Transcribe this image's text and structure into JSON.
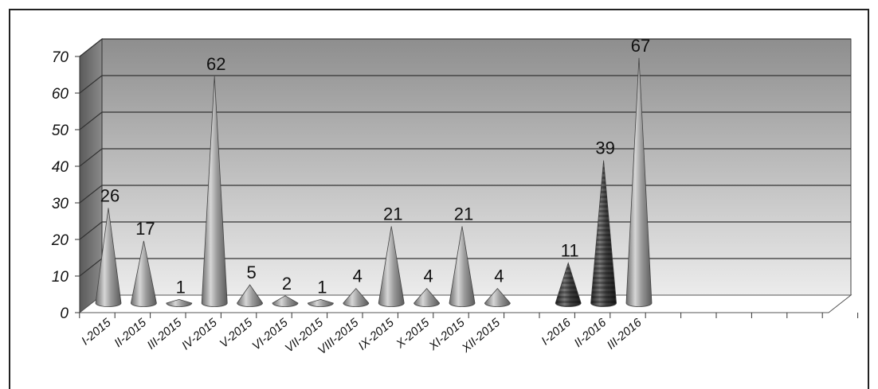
{
  "chart_data": {
    "type": "bar",
    "style": "3d-cone",
    "categories": [
      "I-2015",
      "II-2015",
      "III-2015",
      "IV-2015",
      "V-2015",
      "VI-2015",
      "VII-2015",
      "VIII-2015",
      "IX-2015",
      "X-2015",
      "XI-2015",
      "XII-2015",
      "",
      "I-2016",
      "II-2016",
      "III-2016",
      "",
      "",
      "",
      "",
      "",
      ""
    ],
    "values": [
      26,
      17,
      1,
      62,
      5,
      2,
      1,
      4,
      21,
      4,
      21,
      4,
      null,
      11,
      39,
      67,
      null,
      null,
      null,
      null,
      null,
      null
    ],
    "data_labels": [
      "26",
      "17",
      "1",
      "62",
      "5",
      "2",
      "1",
      "4",
      "21",
      "4",
      "21",
      "4",
      "",
      "11",
      "39",
      "67",
      "",
      "",
      "",
      "",
      "",
      ""
    ],
    "ylim": [
      0,
      70
    ],
    "yticks": [
      "0",
      "10",
      "20",
      "30",
      "40",
      "50",
      "60",
      "70"
    ],
    "grid": true,
    "colors": {
      "cone": "#8a8a8a",
      "cone_textured": "#3c3c3c",
      "wall_top": "#8e8e8e",
      "wall_bottom": "#e8e8e8",
      "side_wall": "#6e6e6e"
    },
    "textured_categories": [
      "I-2016",
      "II-2016"
    ]
  }
}
